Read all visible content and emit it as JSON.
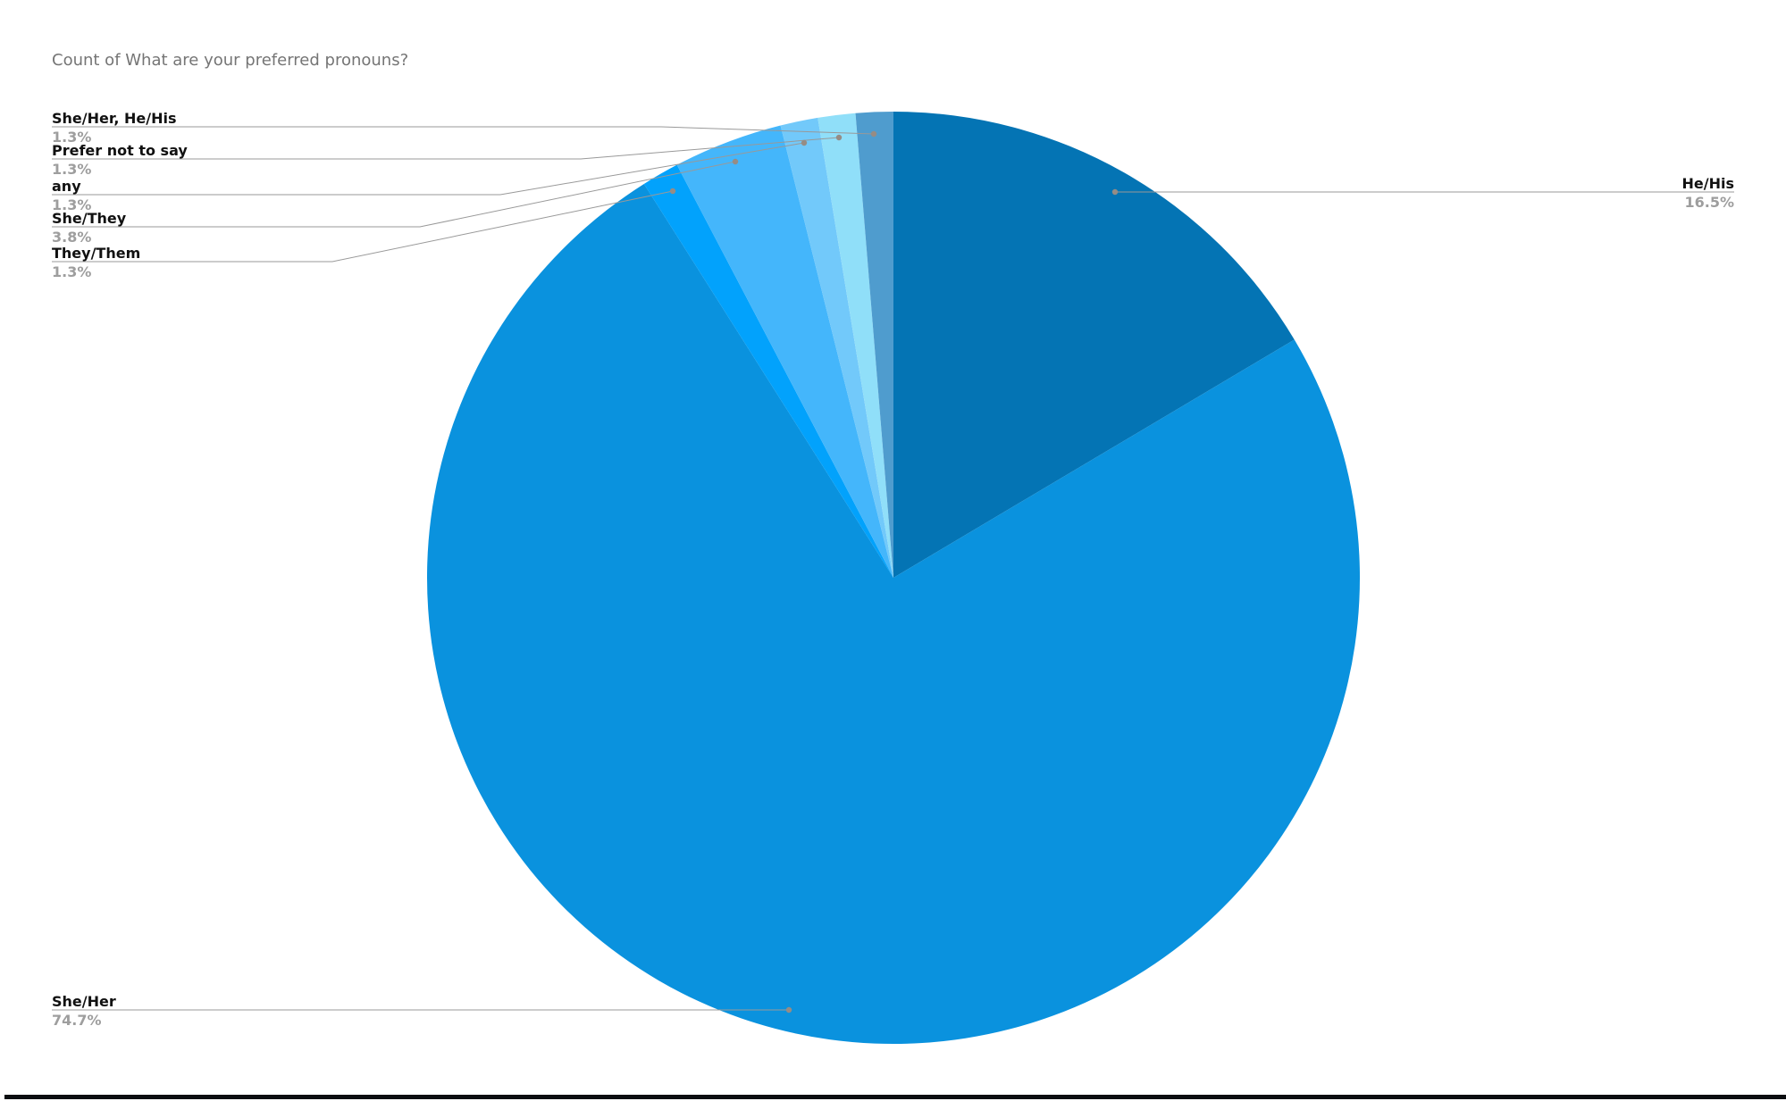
{
  "title": "Count of What are your preferred pronouns?",
  "chart_data": {
    "type": "pie",
    "title": "Count of What are your preferred pronouns?",
    "direction": "clockwise",
    "start_angle_deg": 0,
    "legend_position": "callout-labels",
    "slices": [
      {
        "label": "He/His",
        "value": 16.5,
        "pct_label": "16.5%",
        "color": "#0474b4"
      },
      {
        "label": "She/Her",
        "value": 74.7,
        "pct_label": "74.7%",
        "color": "#0a92de"
      },
      {
        "label": "They/Them",
        "value": 1.3,
        "pct_label": "1.3%",
        "color": "#02a2fc"
      },
      {
        "label": "She/They",
        "value": 3.8,
        "pct_label": "3.8%",
        "color": "#44b6fb"
      },
      {
        "label": "any",
        "value": 1.3,
        "pct_label": "1.3%",
        "color": "#72c9fa"
      },
      {
        "label": "Prefer not to say",
        "value": 1.3,
        "pct_label": "1.3%",
        "color": "#90dff9"
      },
      {
        "label": "She/Her, He/His",
        "value": 1.3,
        "pct_label": "1.3%",
        "color": "#4f9cce"
      }
    ]
  },
  "colors": {
    "title_text": "#757575",
    "label_text": "#111111",
    "pct_text": "#9e9e9e",
    "leader_line": "#999999",
    "leader_dot": "#968c85",
    "bottom_bar": "#0b0d10",
    "background": "#ffffff"
  }
}
